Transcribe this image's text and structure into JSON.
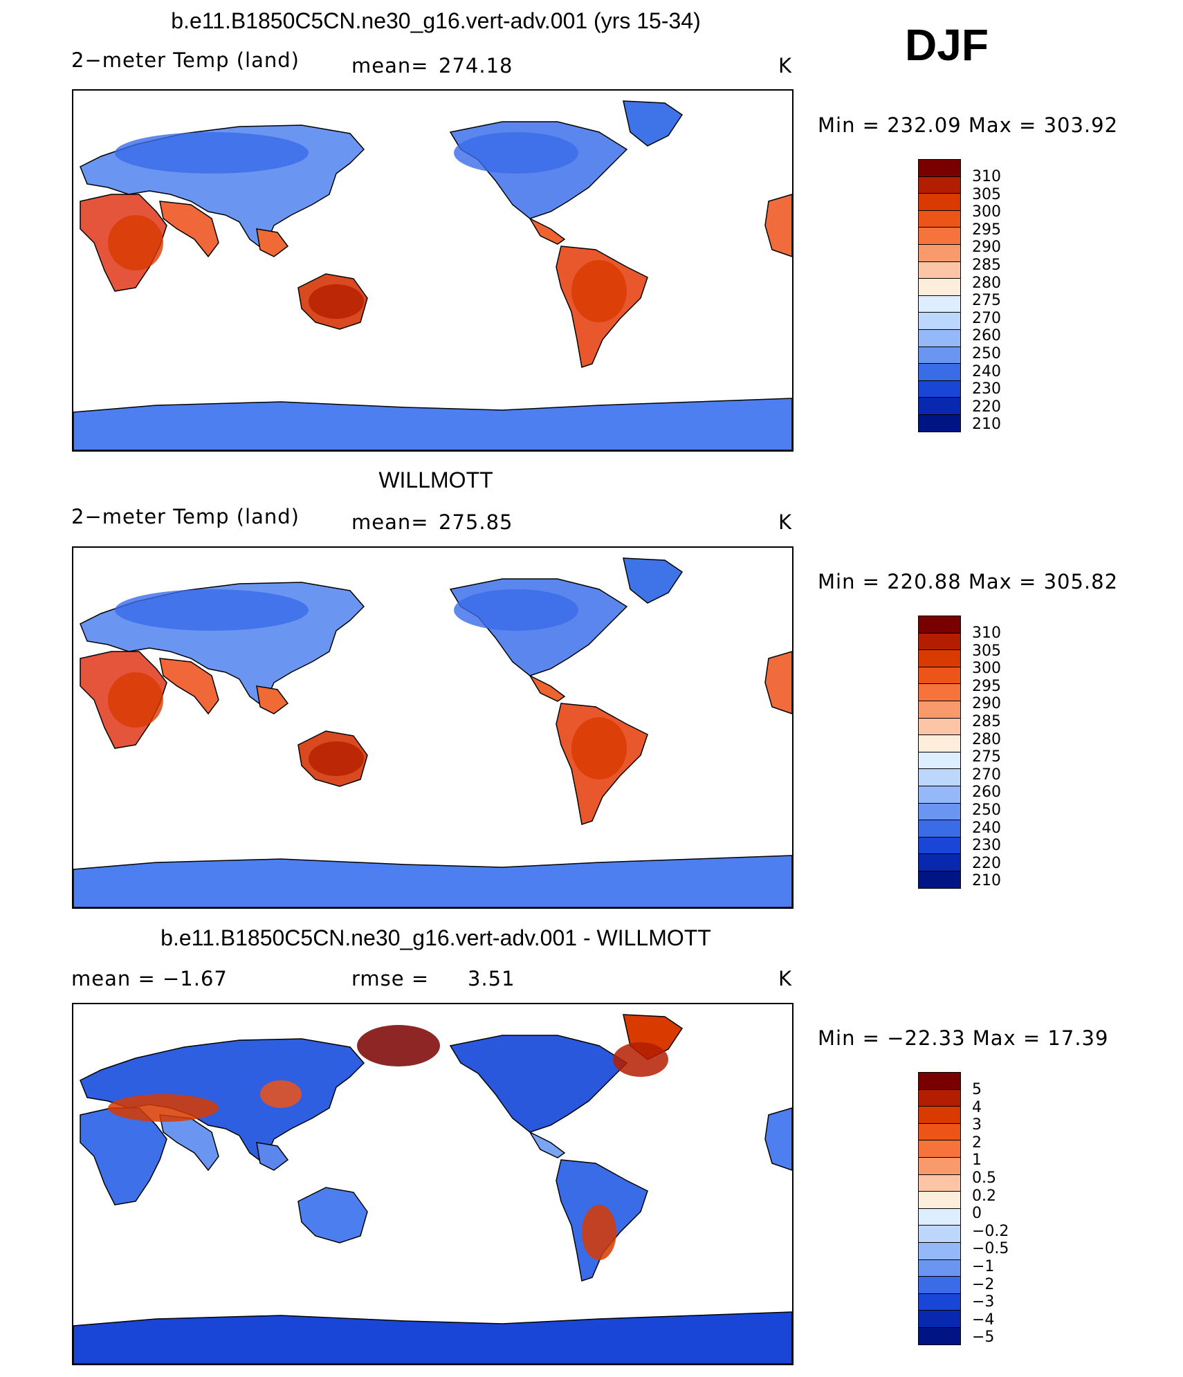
{
  "season": "DJF",
  "units": "K",
  "panels": [
    {
      "title": "b.e11.B1850C5CN.ne30_g16.vert-adv.001 (yrs 15-34)",
      "left_label": "2−meter Temp (land)",
      "stat_label": "mean=",
      "stat_value": "274.18",
      "units": "K",
      "minmax": "Min  =  232.09  Max  =  303.92",
      "scale": "abs"
    },
    {
      "title": "WILLMOTT",
      "left_label": "2−meter Temp (land)",
      "stat_label": "mean=",
      "stat_value": "275.85",
      "units": "K",
      "minmax": "Min  =  220.88  Max  =  305.82",
      "scale": "abs"
    },
    {
      "title": "b.e11.B1850C5CN.ne30_g16.vert-adv.001 - WILLMOTT",
      "left_label": "mean  =     −1.67",
      "stat_label": "rmse  =",
      "stat_value": "3.51",
      "units": "K",
      "minmax": "Min  =  −22.33  Max  =     17.39",
      "scale": "diff"
    }
  ],
  "colorbar_abs": {
    "labels": [
      "310",
      "305",
      "300",
      "295",
      "290",
      "285",
      "280",
      "275",
      "270",
      "260",
      "250",
      "240",
      "230",
      "220",
      "210"
    ],
    "colors": [
      "#7a0000",
      "#b41e00",
      "#d83a00",
      "#ec5418",
      "#f6743c",
      "#f89a6c",
      "#fcc6a6",
      "#fdeedc",
      "#dceeff",
      "#bcd6fc",
      "#94b8f8",
      "#6a96f2",
      "#3a6ce8",
      "#1a46d8",
      "#0828b0",
      "#001484"
    ]
  },
  "colorbar_diff": {
    "labels": [
      "5",
      "4",
      "3",
      "2",
      "1",
      "0.5",
      "0.2",
      "0",
      "−0.2",
      "−0.5",
      "−1",
      "−2",
      "−3",
      "−4",
      "−5"
    ],
    "colors": [
      "#7a0000",
      "#b41e00",
      "#d83a00",
      "#ec5418",
      "#f6743c",
      "#f89a6c",
      "#fcc6a6",
      "#fdeedc",
      "#dceeff",
      "#bcd6fc",
      "#94b8f8",
      "#6a96f2",
      "#3a6ce8",
      "#1a46d8",
      "#0828b0",
      "#001484"
    ]
  }
}
